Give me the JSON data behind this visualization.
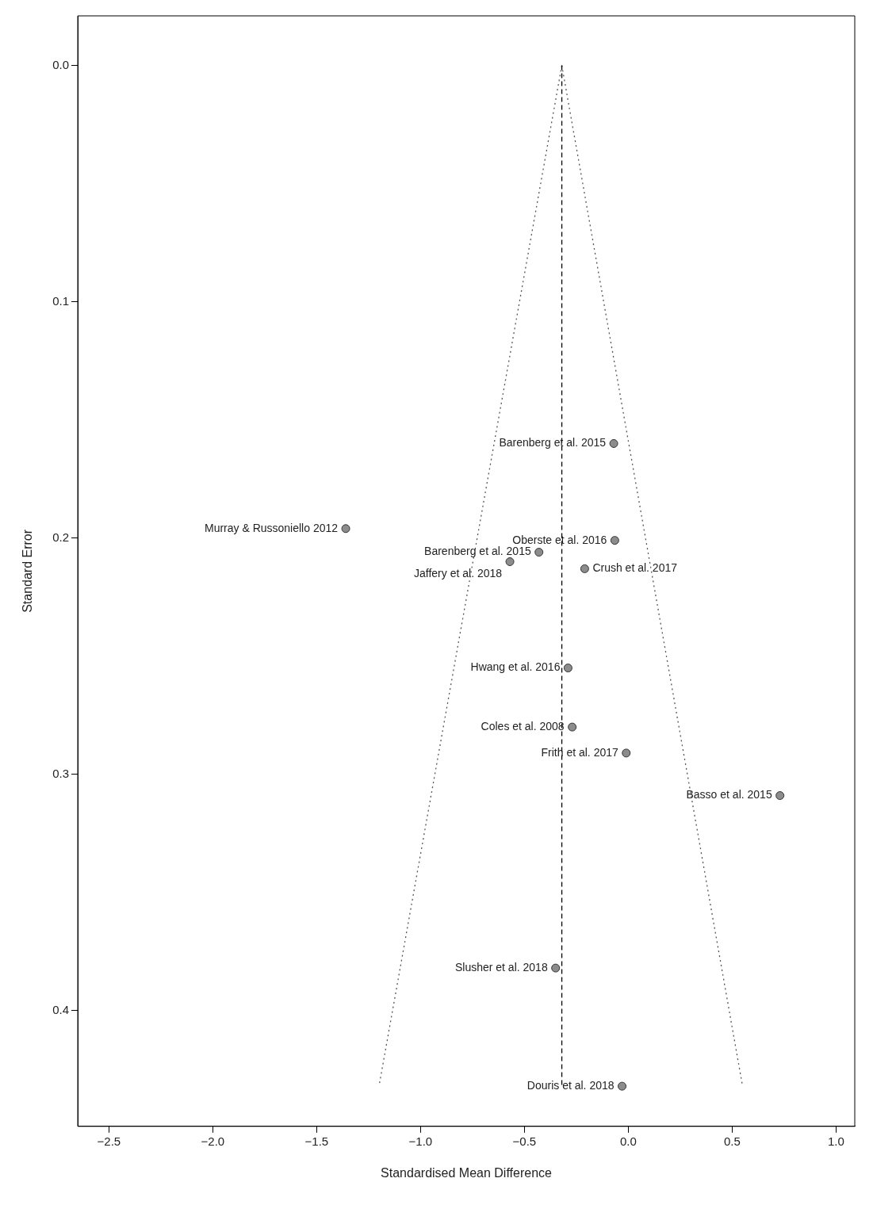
{
  "chart_data": {
    "type": "scatter",
    "xlabel": "Standardised Mean Difference",
    "ylabel": "Standard Error",
    "xlim": [
      -2.65,
      1.09
    ],
    "ylim": [
      0.449,
      -0.021
    ],
    "xticks": [
      {
        "value": -2.5,
        "label": "−2.5"
      },
      {
        "value": -2.0,
        "label": "−2.0"
      },
      {
        "value": -1.5,
        "label": "−1.5"
      },
      {
        "value": -1.0,
        "label": "−1.0"
      },
      {
        "value": -0.5,
        "label": "−0.5"
      },
      {
        "value": 0,
        "label": "0.0"
      },
      {
        "value": 0.5,
        "label": "0.5"
      },
      {
        "value": 1.0,
        "label": "1.0"
      }
    ],
    "yticks": [
      {
        "value": 0,
        "label": "0.0"
      },
      0.1,
      0.2,
      0.3,
      0.4
    ],
    "grid": false,
    "legend": false,
    "series": [
      {
        "type": "scatter",
        "marker": "circle",
        "color": "#8c8c8c",
        "x": [
          -0.07,
          -1.36,
          -0.065,
          -0.43,
          -0.57,
          -0.21,
          -0.29,
          -0.27,
          -0.01,
          0.73,
          -0.35,
          -0.03
        ],
        "values": [
          0.16,
          0.196,
          0.201,
          0.206,
          0.21,
          0.213,
          0.255,
          0.28,
          0.291,
          0.309,
          0.382,
          0.432
        ]
      },
      {
        "type": "line",
        "marker": "none",
        "line_style": "dashed",
        "color": "#000000",
        "x": [
          -0.32,
          -0.32
        ],
        "values": [
          0,
          0.432
        ]
      },
      {
        "type": "line",
        "marker": "none",
        "line_style": "dotted",
        "color": "#555555",
        "x": [
          -0.32,
          -1.2
        ],
        "values": [
          0,
          0.432
        ]
      },
      {
        "type": "line",
        "marker": "none",
        "line_style": "dotted",
        "color": "#555555",
        "x": [
          -0.32,
          0.55
        ],
        "values": [
          0,
          0.432
        ]
      }
    ],
    "annotations": [
      {
        "text": "Barenberg et al. 2015",
        "x": -0.07,
        "y": 0.16
      },
      {
        "text": "Murray & Russoniello 2012",
        "x": -1.36,
        "y": 0.196
      },
      {
        "text": "Oberste et al. 2016",
        "x": -0.065,
        "y": 0.201
      },
      {
        "text": "Barenberg et al. 2015",
        "x": -0.43,
        "y": 0.206
      },
      {
        "text": "Jaffery et al. 2018",
        "x": -0.57,
        "y": 0.21
      },
      {
        "text": "Crush et al. 2017",
        "x": -0.21,
        "y": 0.213
      },
      {
        "text": "Hwang et al. 2016",
        "x": -0.29,
        "y": 0.255
      },
      {
        "text": "Coles et al. 2008",
        "x": -0.27,
        "y": 0.28
      },
      {
        "text": "Frith et al. 2017",
        "x": -0.01,
        "y": 0.291
      },
      {
        "text": "Basso et al. 2015",
        "x": 0.73,
        "y": 0.309
      },
      {
        "text": "Slusher et al. 2018",
        "x": -0.35,
        "y": 0.382
      },
      {
        "text": "Douris et al. 2018",
        "x": -0.03,
        "y": 0.432
      }
    ]
  }
}
